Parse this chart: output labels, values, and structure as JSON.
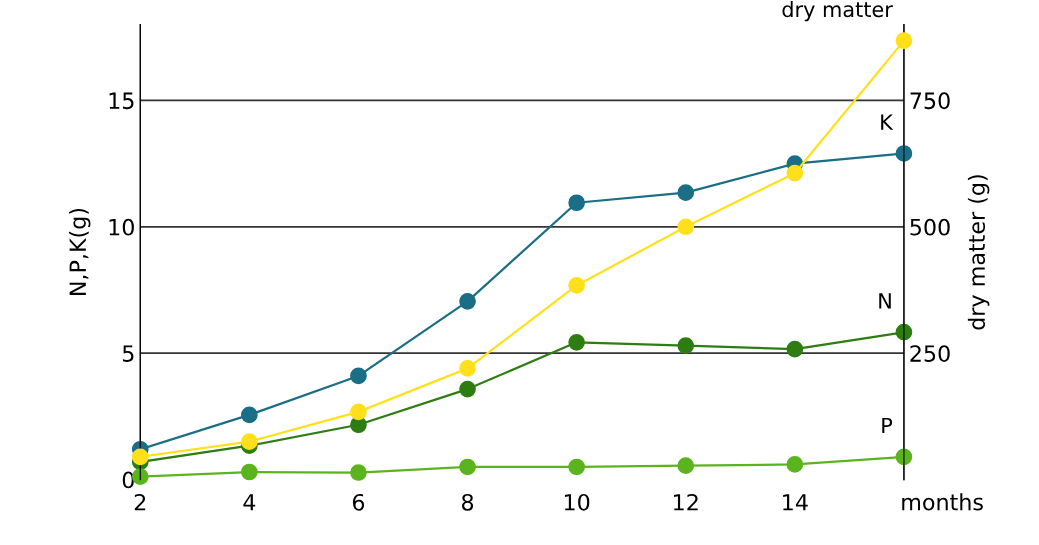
{
  "chart_data": {
    "type": "line",
    "x": [
      2,
      4,
      6,
      8,
      10,
      12,
      14,
      16
    ],
    "series": [
      {
        "name": "K",
        "color": "#1a6e86",
        "values": [
          1.2,
          2.56,
          4.1,
          7.05,
          10.95,
          11.35,
          12.5,
          12.9
        ]
      },
      {
        "name": "dry matter",
        "color": "#ffe01a",
        "axis": "y2",
        "values": [
          45,
          75,
          134,
          220,
          384,
          500,
          606,
          868
        ]
      },
      {
        "name": "N",
        "color": "#2e7d12",
        "values": [
          0.7,
          1.34,
          2.17,
          3.58,
          5.43,
          5.3,
          5.16,
          5.83
        ]
      },
      {
        "name": "P",
        "color": "#5bb41e",
        "values": [
          0.12,
          0.3,
          0.28,
          0.5,
          0.5,
          0.55,
          0.6,
          0.9
        ]
      }
    ],
    "xlim": [
      2,
      16
    ],
    "xticks": [
      2,
      4,
      6,
      8,
      10,
      12,
      14
    ],
    "ylim": [
      0,
      18
    ],
    "yticks": [
      0,
      5,
      10,
      15
    ],
    "y2lim": [
      0,
      900
    ],
    "y2ticks": [
      250,
      500,
      750
    ],
    "xlabel": "months",
    "ylabel": "N,P,K(g)",
    "y2label": "dry matter (g)",
    "grid": "y",
    "legend": false,
    "marker": "circle",
    "line_style": "solid"
  }
}
